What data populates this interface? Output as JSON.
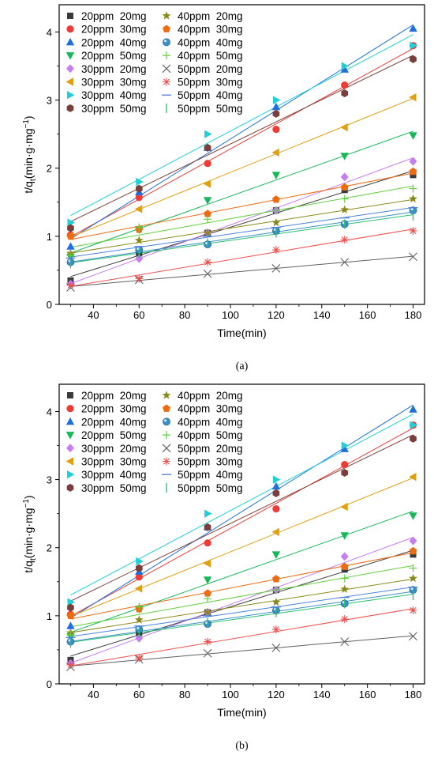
{
  "chart_data": [
    {
      "type": "scatter",
      "panel_label": "(a)",
      "xlabel": "Time(min)",
      "ylabel": {
        "main": "t/q",
        "sub": "t",
        "rest": "(min·g·mg",
        "sup": "−1",
        "end": ")"
      },
      "xlim": [
        25,
        185
      ],
      "ylim": [
        0,
        4.4
      ],
      "xticks": [
        40,
        60,
        80,
        100,
        120,
        140,
        160,
        180
      ],
      "yticks": [
        0,
        1,
        2,
        3,
        4
      ],
      "grid": false,
      "legend_position": "top-left, two columns",
      "x": [
        30,
        60,
        90,
        120,
        150,
        180
      ],
      "series": [
        {
          "name": "20ppm  20mg",
          "marker": "square",
          "color": "#3a3a3a",
          "values": [
            0.35,
            0.75,
            1.05,
            1.38,
            1.68,
            1.9
          ]
        },
        {
          "name": "20ppm  30mg",
          "marker": "circle",
          "color": "#ef3b36",
          "values": [
            1.02,
            1.57,
            2.07,
            2.57,
            3.22,
            3.8
          ]
        },
        {
          "name": "20ppm  40mg",
          "marker": "triangle",
          "color": "#1f6fe0",
          "values": [
            0.85,
            1.65,
            2.3,
            2.9,
            3.45,
            4.05
          ]
        },
        {
          "name": "20ppm  50mg",
          "marker": "triangle-down",
          "color": "#16b85a",
          "values": [
            0.7,
            1.1,
            1.53,
            1.9,
            2.18,
            2.48
          ]
        },
        {
          "name": "30ppm  20mg",
          "marker": "diamond",
          "color": "#c77df3",
          "values": [
            0.3,
            0.67,
            1.05,
            1.38,
            1.87,
            2.1
          ]
        },
        {
          "name": "30ppm  30mg",
          "marker": "triangle-left",
          "color": "#e0a010",
          "values": [
            1.0,
            1.4,
            1.77,
            2.23,
            2.6,
            3.04
          ]
        },
        {
          "name": "30ppm  40mg",
          "marker": "triangle-right",
          "color": "#1fd0d8",
          "values": [
            1.2,
            1.8,
            2.5,
            3.0,
            3.5,
            3.8
          ]
        },
        {
          "name": "30ppm  50mg",
          "marker": "hexagon",
          "color": "#7a3f3a",
          "values": [
            1.12,
            1.7,
            2.3,
            2.8,
            3.1,
            3.6
          ]
        },
        {
          "name": "40ppm  20mg",
          "marker": "star",
          "color": "#8a8a1a",
          "values": [
            0.75,
            0.94,
            1.05,
            1.2,
            1.39,
            1.55
          ]
        },
        {
          "name": "40ppm  30mg",
          "marker": "pentagon",
          "color": "#f06a10",
          "values": [
            1.0,
            1.1,
            1.33,
            1.54,
            1.72,
            1.95
          ]
        },
        {
          "name": "40ppm  40mg",
          "marker": "sphere",
          "color": "#3a8fc8",
          "values": [
            0.62,
            0.8,
            0.88,
            1.08,
            1.18,
            1.38
          ]
        },
        {
          "name": "40ppm  50mg",
          "marker": "plus",
          "color": "#5fcf3a",
          "values": [
            0.72,
            1.13,
            1.25,
            1.38,
            1.55,
            1.7
          ]
        },
        {
          "name": "50ppm  20mg",
          "marker": "x",
          "color": "#606060",
          "values": [
            0.25,
            0.36,
            0.45,
            0.53,
            0.62,
            0.7
          ]
        },
        {
          "name": "50ppm  30mg",
          "marker": "asterisk",
          "color": "#f05050",
          "values": [
            0.28,
            0.38,
            0.62,
            0.8,
            0.95,
            1.08
          ]
        },
        {
          "name": "50ppm  40mg",
          "marker": "dash",
          "color": "#4a80e0",
          "values": [
            0.68,
            0.85,
            1.0,
            1.13,
            1.27,
            1.42
          ]
        },
        {
          "name": "50ppm  50mg",
          "marker": "vline",
          "color": "#28c070",
          "values": [
            0.6,
            0.75,
            0.9,
            1.05,
            1.18,
            1.3
          ]
        }
      ]
    },
    {
      "type": "scatter",
      "panel_label": "(b)",
      "xlabel": "Time(min)",
      "ylabel": {
        "main": "t/q",
        "sub": "t",
        "rest": "(min·g·mg",
        "sup": "−1",
        "end": ")"
      },
      "xlim": [
        25,
        185
      ],
      "ylim": [
        0,
        4.4
      ],
      "xticks": [
        40,
        60,
        80,
        100,
        120,
        140,
        160,
        180
      ],
      "yticks": [
        0,
        1,
        2,
        3,
        4
      ],
      "grid": false,
      "legend_position": "top-left, two columns",
      "x": [
        30,
        60,
        90,
        120,
        150,
        180
      ],
      "series": [
        {
          "name": "20ppm  20mg",
          "marker": "square",
          "color": "#3a3a3a",
          "values": [
            0.35,
            0.75,
            1.05,
            1.38,
            1.68,
            1.9
          ]
        },
        {
          "name": "20ppm  30mg",
          "marker": "circle",
          "color": "#ef3b36",
          "values": [
            1.02,
            1.57,
            2.07,
            2.57,
            3.22,
            3.8
          ]
        },
        {
          "name": "20ppm  40mg",
          "marker": "triangle",
          "color": "#1f6fe0",
          "values": [
            0.85,
            1.65,
            2.3,
            2.9,
            3.45,
            4.03
          ]
        },
        {
          "name": "20ppm  50mg",
          "marker": "triangle-down",
          "color": "#16b85a",
          "values": [
            0.7,
            1.1,
            1.53,
            1.9,
            2.18,
            2.47
          ]
        },
        {
          "name": "30ppm  20mg",
          "marker": "diamond",
          "color": "#c77df3",
          "values": [
            0.3,
            0.67,
            1.05,
            1.38,
            1.87,
            2.1
          ]
        },
        {
          "name": "30ppm  30mg",
          "marker": "triangle-left",
          "color": "#e0a010",
          "values": [
            1.0,
            1.4,
            1.77,
            2.23,
            2.6,
            3.04
          ]
        },
        {
          "name": "30ppm  40mg",
          "marker": "triangle-right",
          "color": "#1fd0d8",
          "values": [
            1.2,
            1.8,
            2.5,
            3.0,
            3.5,
            3.8
          ]
        },
        {
          "name": "30ppm  50mg",
          "marker": "hexagon",
          "color": "#7a3f3a",
          "values": [
            1.12,
            1.7,
            2.3,
            2.8,
            3.1,
            3.6
          ]
        },
        {
          "name": "40ppm  20mg",
          "marker": "star",
          "color": "#8a8a1a",
          "values": [
            0.75,
            0.94,
            1.05,
            1.2,
            1.39,
            1.55
          ]
        },
        {
          "name": "40ppm  30mg",
          "marker": "pentagon",
          "color": "#f06a10",
          "values": [
            1.0,
            1.1,
            1.33,
            1.54,
            1.72,
            1.95
          ]
        },
        {
          "name": "40ppm  40mg",
          "marker": "sphere",
          "color": "#3a8fc8",
          "values": [
            0.62,
            0.8,
            0.88,
            1.08,
            1.18,
            1.38
          ]
        },
        {
          "name": "40ppm  50mg",
          "marker": "plus",
          "color": "#5fcf3a",
          "values": [
            0.72,
            1.13,
            1.25,
            1.38,
            1.55,
            1.7
          ]
        },
        {
          "name": "50ppm  20mg",
          "marker": "x",
          "color": "#606060",
          "values": [
            0.25,
            0.36,
            0.45,
            0.53,
            0.62,
            0.7
          ]
        },
        {
          "name": "50ppm  30mg",
          "marker": "asterisk",
          "color": "#f05050",
          "values": [
            0.28,
            0.38,
            0.62,
            0.8,
            0.95,
            1.08
          ]
        },
        {
          "name": "50ppm  40mg",
          "marker": "dash",
          "color": "#4a80e0",
          "values": [
            0.68,
            0.85,
            1.0,
            1.13,
            1.27,
            1.42
          ]
        },
        {
          "name": "50ppm  50mg",
          "marker": "vline",
          "color": "#28c070",
          "values": [
            0.6,
            0.75,
            0.9,
            1.05,
            1.18,
            1.3
          ]
        }
      ]
    }
  ]
}
